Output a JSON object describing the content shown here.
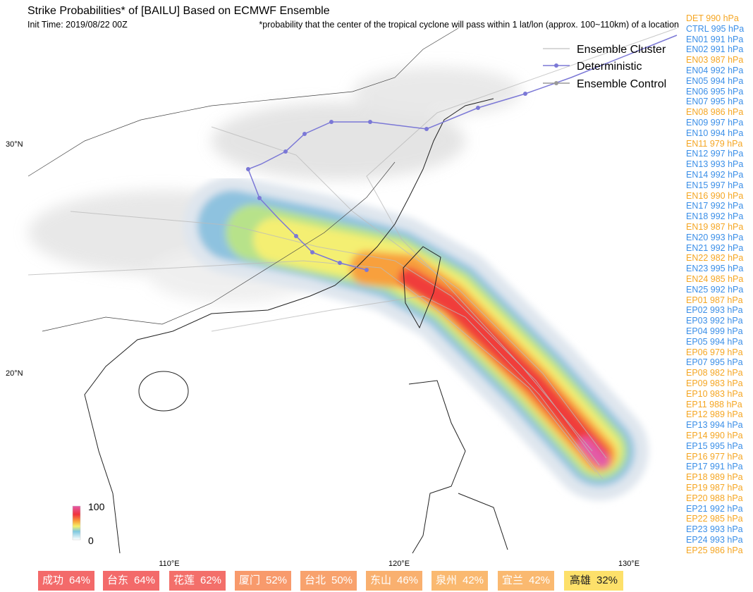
{
  "header": {
    "title": "Strike Probabilities* of [BAILU] Based on ECMWF Ensemble",
    "init_time": "Init Time: 2019/08/22 00Z",
    "footnote": "*probability that the center of the tropical cyclone will pass within 1 lat/lon (approx. 100~110km) of a location"
  },
  "legend": [
    "Ensemble Cluster",
    "Deterministic",
    "Ensemble Control"
  ],
  "axes": {
    "lat": [
      "30°N",
      "20°N"
    ],
    "lon": [
      "110°E",
      "120°E",
      "130°E"
    ]
  },
  "colorbar": {
    "max": "100",
    "min": "0"
  },
  "members": [
    {
      "label": "DET 990 hPa",
      "color": "#f5a623"
    },
    {
      "label": "CTRL 995 hPa",
      "color": "#3b8fe8"
    },
    {
      "label": "EN01 991 hPa",
      "color": "#3b8fe8"
    },
    {
      "label": "EN02 991 hPa",
      "color": "#3b8fe8"
    },
    {
      "label": "EN03 987 hPa",
      "color": "#f5a623"
    },
    {
      "label": "EN04 992 hPa",
      "color": "#3b8fe8"
    },
    {
      "label": "EN05 994 hPa",
      "color": "#3b8fe8"
    },
    {
      "label": "EN06 995 hPa",
      "color": "#3b8fe8"
    },
    {
      "label": "EN07 995 hPa",
      "color": "#3b8fe8"
    },
    {
      "label": "EN08 986 hPa",
      "color": "#f5a623"
    },
    {
      "label": "EN09 997 hPa",
      "color": "#3b8fe8"
    },
    {
      "label": "EN10 994 hPa",
      "color": "#3b8fe8"
    },
    {
      "label": "EN11 979 hPa",
      "color": "#f5a623"
    },
    {
      "label": "EN12 997 hPa",
      "color": "#3b8fe8"
    },
    {
      "label": "EN13 993 hPa",
      "color": "#3b8fe8"
    },
    {
      "label": "EN14 992 hPa",
      "color": "#3b8fe8"
    },
    {
      "label": "EN15 997 hPa",
      "color": "#3b8fe8"
    },
    {
      "label": "EN16 990 hPa",
      "color": "#f5a623"
    },
    {
      "label": "EN17 992 hPa",
      "color": "#3b8fe8"
    },
    {
      "label": "EN18 992 hPa",
      "color": "#3b8fe8"
    },
    {
      "label": "EN19 987 hPa",
      "color": "#f5a623"
    },
    {
      "label": "EN20 993 hPa",
      "color": "#3b8fe8"
    },
    {
      "label": "EN21 992 hPa",
      "color": "#3b8fe8"
    },
    {
      "label": "EN22 982 hPa",
      "color": "#f5a623"
    },
    {
      "label": "EN23 995 hPa",
      "color": "#3b8fe8"
    },
    {
      "label": "EN24 985 hPa",
      "color": "#f5a623"
    },
    {
      "label": "EN25 992 hPa",
      "color": "#3b8fe8"
    },
    {
      "label": "EP01 987 hPa",
      "color": "#f5a623"
    },
    {
      "label": "EP02 993 hPa",
      "color": "#3b8fe8"
    },
    {
      "label": "EP03 992 hPa",
      "color": "#3b8fe8"
    },
    {
      "label": "EP04 999 hPa",
      "color": "#3b8fe8"
    },
    {
      "label": "EP05 994 hPa",
      "color": "#3b8fe8"
    },
    {
      "label": "EP06 979 hPa",
      "color": "#f5a623"
    },
    {
      "label": "EP07 995 hPa",
      "color": "#3b8fe8"
    },
    {
      "label": "EP08 982 hPa",
      "color": "#f5a623"
    },
    {
      "label": "EP09 983 hPa",
      "color": "#f5a623"
    },
    {
      "label": "EP10 983 hPa",
      "color": "#f5a623"
    },
    {
      "label": "EP11 988 hPa",
      "color": "#f5a623"
    },
    {
      "label": "EP12 989 hPa",
      "color": "#f5a623"
    },
    {
      "label": "EP13 994 hPa",
      "color": "#3b8fe8"
    },
    {
      "label": "EP14 990 hPa",
      "color": "#f5a623"
    },
    {
      "label": "EP15 995 hPa",
      "color": "#3b8fe8"
    },
    {
      "label": "EP16 977 hPa",
      "color": "#f5a623"
    },
    {
      "label": "EP17 991 hPa",
      "color": "#3b8fe8"
    },
    {
      "label": "EP18 989 hPa",
      "color": "#f5a623"
    },
    {
      "label": "EP19 987 hPa",
      "color": "#f5a623"
    },
    {
      "label": "EP20 988 hPa",
      "color": "#f5a623"
    },
    {
      "label": "EP21 992 hPa",
      "color": "#3b8fe8"
    },
    {
      "label": "EP22 985 hPa",
      "color": "#f5a623"
    },
    {
      "label": "EP23 993 hPa",
      "color": "#3b8fe8"
    },
    {
      "label": "EP24 993 hPa",
      "color": "#3b8fe8"
    },
    {
      "label": "EP25 986 hPa",
      "color": "#f5a623"
    }
  ],
  "cities": [
    {
      "name": "成功",
      "value": "64%",
      "color": "#f36a6a",
      "text_color": "#ffffff"
    },
    {
      "name": "台东",
      "value": "64%",
      "color": "#f36a6a",
      "text_color": "#ffffff"
    },
    {
      "name": "花莲",
      "value": "62%",
      "color": "#f36f6a",
      "text_color": "#ffffff"
    },
    {
      "name": "厦门",
      "value": "52%",
      "color": "#f89a6c",
      "text_color": "#ffffff"
    },
    {
      "name": "台北",
      "value": "50%",
      "color": "#f8a26d",
      "text_color": "#ffffff"
    },
    {
      "name": "东山",
      "value": "46%",
      "color": "#f9b06f",
      "text_color": "#ffffff"
    },
    {
      "name": "泉州",
      "value": "42%",
      "color": "#fab970",
      "text_color": "#ffffff"
    },
    {
      "name": "宜兰",
      "value": "42%",
      "color": "#fab970",
      "text_color": "#ffffff"
    },
    {
      "name": "高雄",
      "value": "32%",
      "color": "#fde06a",
      "text_color": "#222222"
    }
  ]
}
